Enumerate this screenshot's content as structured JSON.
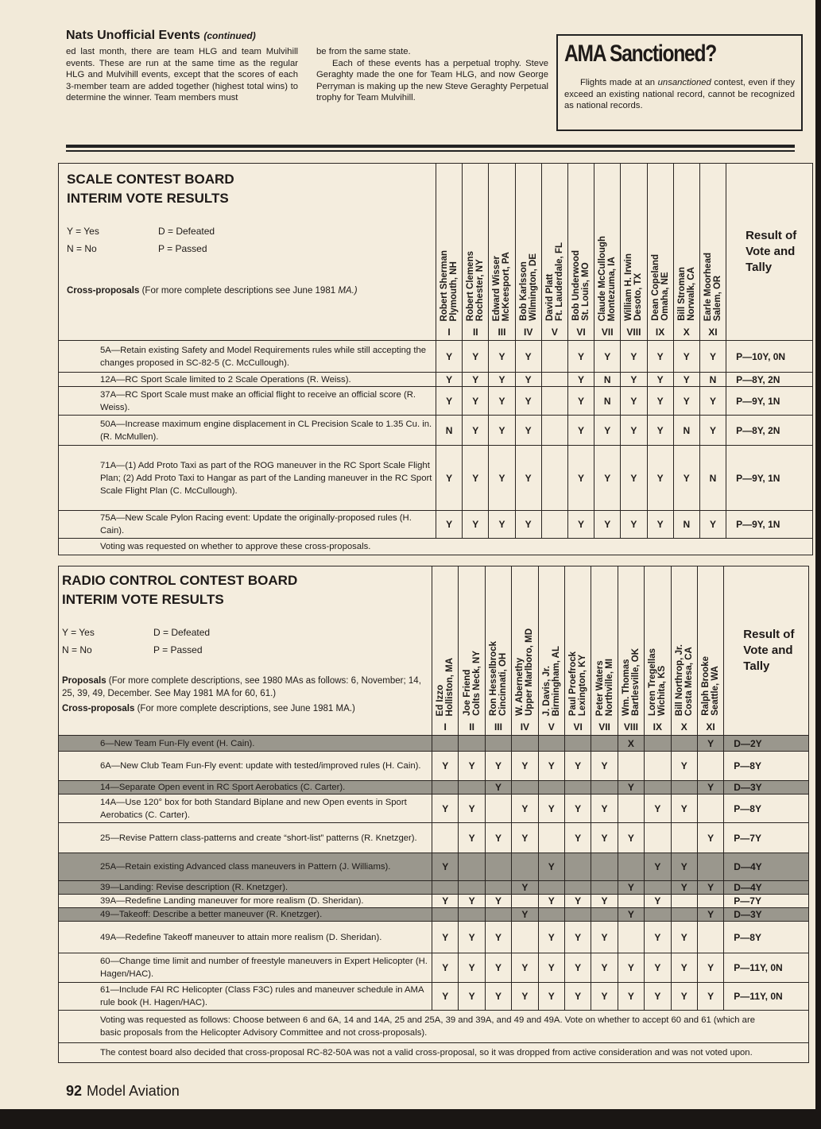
{
  "article": {
    "title": "Nats Unofficial Events",
    "title_suffix": "(continued)",
    "col1": "ed last month, there are team HLG and team Mulvihill events. These are run at the same time as the regular HLG and Mulvihill events, except that the scores of each 3-member team are added together (highest total wins) to determine the winner. Team members must",
    "col2_p1": "be from the same state.",
    "col2_p2": "Each of these events has a perpetual trophy. Steve Geraghty made the one for Team HLG, and now George Perryman is making up the new Steve Geraghty Perpetual trophy for Team Mulvihill."
  },
  "sidebar": {
    "title": "AMA Sanctioned?",
    "text_before": "Flights made at an ",
    "text_em": "unsanctioned",
    "text_after": " contest, even if they exceed an existing national record, cannot be recognized as national records."
  },
  "scale": {
    "title1": "SCALE CONTEST BOARD",
    "title2": "INTERIM VOTE RESULTS",
    "legend": [
      "Y = Yes",
      "D = Defeated",
      "N = No",
      "P = Passed"
    ],
    "cross_label": "Cross-proposals",
    "cross_text": " (For more complete descriptions see June 1981 ",
    "cross_em": "MA.)",
    "result_header": "Result of Vote and Tally",
    "voters": [
      {
        "name": "Robert Sherman",
        "place": "Plymouth, NH",
        "district": "I"
      },
      {
        "name": "Robert Clemens",
        "place": "Rochester, NY",
        "district": "II"
      },
      {
        "name": "Edward Wisser",
        "place": "McKeesport, PA",
        "district": "III"
      },
      {
        "name": "Bob Karlsson",
        "place": "Wilmington, DE",
        "district": "IV"
      },
      {
        "name": "David Platt",
        "place": "Ft. Lauderdale, FL",
        "district": "V"
      },
      {
        "name": "Bob Underwood",
        "place": "St. Louis, MO",
        "district": "VI"
      },
      {
        "name": "Claude McCullough",
        "place": "Montezuma, IA",
        "district": "VII"
      },
      {
        "name": "William H. Irwin",
        "place": "Desoto, TX",
        "district": "VIII"
      },
      {
        "name": "Dean Copeland",
        "place": "Omaha, NE",
        "district": "IX"
      },
      {
        "name": "Bill Stroman",
        "place": "Norwalk, CA",
        "district": "X"
      },
      {
        "name": "Earle Moorhead",
        "place": "Salem, OR",
        "district": "XI"
      }
    ],
    "rows": [
      {
        "text": "5A—Retain existing Safety and Model Requirements rules while still accepting the changes proposed in SC-82-5 (C. McCullough).",
        "votes": [
          "Y",
          "Y",
          "Y",
          "Y",
          "",
          "Y",
          "Y",
          "Y",
          "Y",
          "Y",
          "Y"
        ],
        "result": "P—10Y, 0N"
      },
      {
        "text": "12A—RC Sport Scale limited to 2 Scale Operations (R. Weiss).",
        "votes": [
          "Y",
          "Y",
          "Y",
          "Y",
          "",
          "Y",
          "N",
          "Y",
          "Y",
          "Y",
          "N"
        ],
        "result": "P—8Y, 2N"
      },
      {
        "text": "37A—RC Sport Scale must make an official flight to receive an official score (R. Weiss).",
        "votes": [
          "Y",
          "Y",
          "Y",
          "Y",
          "",
          "Y",
          "N",
          "Y",
          "Y",
          "Y",
          "Y"
        ],
        "result": "P—9Y, 1N"
      },
      {
        "text": "50A—Increase maximum engine displacement in CL Precision Scale to 1.35 Cu. in. (R. McMullen).",
        "votes": [
          "N",
          "Y",
          "Y",
          "Y",
          "",
          "Y",
          "Y",
          "Y",
          "Y",
          "N",
          "Y"
        ],
        "result": "P—8Y, 2N"
      },
      {
        "text": "71A—(1) Add Proto Taxi as part of the ROG maneuver in the RC Sport Scale Flight Plan; (2) Add Proto Taxi to Hangar as part of the Landing maneuver in the RC Sport Scale Flight Plan (C. McCullough).",
        "votes": [
          "Y",
          "Y",
          "Y",
          "Y",
          "",
          "Y",
          "Y",
          "Y",
          "Y",
          "Y",
          "N"
        ],
        "result": "P—9Y, 1N"
      },
      {
        "text": "75A—New Scale Pylon Racing event: Update the originally-proposed rules (H. Cain).",
        "votes": [
          "Y",
          "Y",
          "Y",
          "Y",
          "",
          "Y",
          "Y",
          "Y",
          "Y",
          "N",
          "Y"
        ],
        "result": "P—9Y, 1N"
      }
    ],
    "footnote": "Voting was requested on whether to approve these cross-proposals."
  },
  "rc": {
    "title1": "RADIO CONTROL CONTEST BOARD",
    "title2": "INTERIM VOTE RESULTS",
    "legend": [
      "Y = Yes",
      "D = Defeated",
      "N = No",
      "P = Passed"
    ],
    "proposals_label": "Proposals",
    "proposals_text": " (For more complete descriptions, see 1980 MAs as follows: 6, November; 14, 25, 39, 49, December. See May 1981 MA for 60, 61.)",
    "cross_label": "Cross-proposals",
    "cross_text": " (For more complete descriptions, see June 1981 MA.)",
    "result_header": "Result of Vote and Tally",
    "voters": [
      {
        "name": "Ed Izzo",
        "place": "Holliston, MA",
        "district": "I"
      },
      {
        "name": "Joe Friend",
        "place": "Colts Neck, NY",
        "district": "II"
      },
      {
        "name": "Ron Hesselbrock",
        "place": "Cincinnati, OH",
        "district": "III"
      },
      {
        "name": "W. Abernethy",
        "place": "Upper Marlboro, MD",
        "district": "IV"
      },
      {
        "name": "J. Davis, Jr.",
        "place": "Birmingham, AL",
        "district": "V"
      },
      {
        "name": "Paul Proefrock",
        "place": "Lexington, KY",
        "district": "VI"
      },
      {
        "name": "Peter Waters",
        "place": "Northville, MI",
        "district": "VII"
      },
      {
        "name": "Wm. Thomas",
        "place": "Bartlesville, OK",
        "district": "VIII"
      },
      {
        "name": "Loren Tregellas",
        "place": "Wichita, KS",
        "district": "IX"
      },
      {
        "name": "Bill Northrop, Jr.",
        "place": "Costa Mesa, CA",
        "district": "X"
      },
      {
        "name": "Ralph Brooke",
        "place": "Seattle, WA",
        "district": "XI"
      }
    ],
    "rows": [
      {
        "text": "6—New Team Fun-Fly event (H. Cain).",
        "shaded": true,
        "votes": [
          "",
          "",
          "",
          "",
          "",
          "",
          "",
          "X",
          "",
          "",
          "Y"
        ],
        "result": "D—2Y"
      },
      {
        "text": "6A—New Club Team Fun-Fly event: update with tested/improved rules (H. Cain).",
        "shaded": false,
        "votes": [
          "Y",
          "Y",
          "Y",
          "Y",
          "Y",
          "Y",
          "Y",
          "",
          "",
          "Y",
          ""
        ],
        "result": "P—8Y"
      },
      {
        "text": "14—Separate Open event in RC Sport Aerobatics (C. Carter).",
        "shaded": true,
        "votes": [
          "",
          "",
          "Y",
          "",
          "",
          "",
          "",
          "Y",
          "",
          "",
          "Y"
        ],
        "result": "D—3Y"
      },
      {
        "text": "14A—Use 120° box for both Standard Biplane and new Open events in Sport Aerobatics (C. Carter).",
        "shaded": false,
        "votes": [
          "Y",
          "Y",
          "",
          "Y",
          "Y",
          "Y",
          "Y",
          "",
          "Y",
          "Y",
          ""
        ],
        "result": "P—8Y"
      },
      {
        "text": "25—Revise Pattern class-patterns and create “short-list” patterns (R. Knetzger).",
        "shaded": false,
        "votes": [
          "",
          "Y",
          "Y",
          "Y",
          "",
          "Y",
          "Y",
          "Y",
          "",
          "",
          "Y"
        ],
        "result": "P—7Y"
      },
      {
        "text": "25A—Retain existing Advanced class maneuvers in Pattern (J. Williams).",
        "shaded": true,
        "votes": [
          "Y",
          "",
          "",
          "",
          "Y",
          "",
          "",
          "",
          "Y",
          "Y",
          ""
        ],
        "result": "D—4Y"
      },
      {
        "text": "39—Landing: Revise description (R. Knetzger).",
        "shaded": true,
        "votes": [
          "",
          "",
          "",
          "Y",
          "",
          "",
          "",
          "Y",
          "",
          "Y",
          "Y"
        ],
        "result": "D—4Y"
      },
      {
        "text": "39A—Redefine Landing maneuver for more realism (D. Sheridan).",
        "shaded": false,
        "votes": [
          "Y",
          "Y",
          "Y",
          "",
          "Y",
          "Y",
          "Y",
          "",
          "Y",
          "",
          ""
        ],
        "result": "P—7Y"
      },
      {
        "text": "49—Takeoff: Describe a better maneuver (R. Knetzger).",
        "shaded": true,
        "votes": [
          "",
          "",
          "",
          "Y",
          "",
          "",
          "",
          "Y",
          "",
          "",
          "Y"
        ],
        "result": "D—3Y"
      },
      {
        "text": "49A—Redefine Takeoff maneuver to attain more realism (D. Sheridan).",
        "shaded": false,
        "votes": [
          "Y",
          "Y",
          "Y",
          "",
          "Y",
          "Y",
          "Y",
          "",
          "Y",
          "Y",
          ""
        ],
        "result": "P—8Y"
      },
      {
        "text": "60—Change time limit and number of freestyle maneuvers in Expert Helicopter (H. Hagen/HAC).",
        "shaded": false,
        "votes": [
          "Y",
          "Y",
          "Y",
          "Y",
          "Y",
          "Y",
          "Y",
          "Y",
          "Y",
          "Y",
          "Y"
        ],
        "result": "P—11Y, 0N"
      },
      {
        "text": "61—Include FAI RC Helicopter (Class F3C) rules and maneuver schedule in AMA rule book (H. Hagen/HAC).",
        "shaded": false,
        "votes": [
          "Y",
          "Y",
          "Y",
          "Y",
          "Y",
          "Y",
          "Y",
          "Y",
          "Y",
          "Y",
          "Y"
        ],
        "result": "P—11Y, 0N"
      }
    ],
    "footnote1": "Voting was requested as follows: Choose between 6 and 6A, 14 and 14A, 25 and 25A, 39 and 39A, and 49 and 49A. Vote on whether to accept 60 and 61 (which are basic proposals from the Helicopter Advisory Committee and not cross-proposals).",
    "footnote2": "The contest board also decided that cross-proposal RC-82-50A was not a valid cross-proposal, so it was dropped from active consideration and was not voted upon."
  },
  "footer": {
    "page_number": "92",
    "magazine": "Model Aviation"
  }
}
